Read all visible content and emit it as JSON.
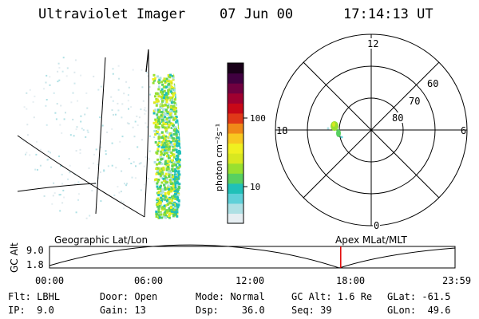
{
  "header": {
    "instrument": "Ultraviolet Imager",
    "date": "07 Jun 00",
    "time": "17:14:13 UT"
  },
  "colorbar": {
    "unit_label": "photon cm⁻²s⁻¹",
    "tick_labels": [
      "100",
      "10"
    ],
    "colors": [
      "#e6eef2",
      "#aee0e4",
      "#5fd0d8",
      "#20c0b8",
      "#58d060",
      "#98e030",
      "#d8e820",
      "#f0f020",
      "#f8c820",
      "#f08818",
      "#e03818",
      "#c80818",
      "#a00030",
      "#700040",
      "#400040",
      "#180018"
    ]
  },
  "polar_plot": {
    "mlt_labels": [
      "12",
      "18",
      "6",
      "0"
    ],
    "lat_labels": [
      "60",
      "70",
      "80"
    ]
  },
  "timeline": {
    "left_label": "Geographic Lat/Lon",
    "right_label": "Apex MLat/MLT",
    "axis_label": "GC Alt",
    "y_ticks": [
      "9.0",
      "1.8"
    ],
    "time_ticks": [
      "00:00",
      "06:00",
      "12:00",
      "18:00",
      "23:59"
    ],
    "current_time_hours": 17.237,
    "marker_color": "#e00000"
  },
  "info": {
    "flt": "Flt: LBHL",
    "ip": "IP:  9.0",
    "door": "Door: Open",
    "gain": "Gain: 13",
    "mode": "Mode: Normal",
    "dsp": "Dsp:    36.0",
    "gcalt": "GC Alt: 1.6 Re",
    "seq": "Seq: 39",
    "glat": "GLat: -61.5",
    "glon": "GLon:  49.6"
  }
}
